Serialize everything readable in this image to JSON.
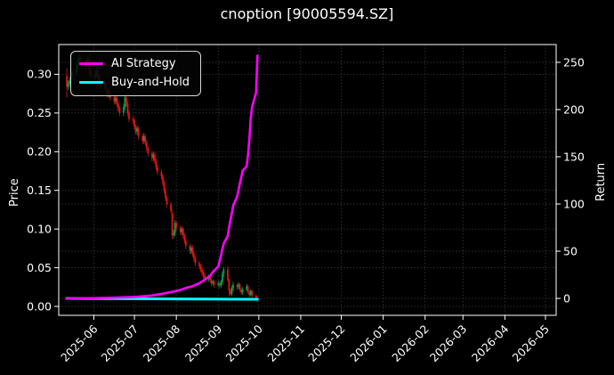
{
  "title": "cnoption [90005594.SZ]",
  "axes": {
    "price_label": "Price",
    "return_label": "Return"
  },
  "legend": {
    "position": "upper left",
    "items": [
      {
        "label": "AI Strategy",
        "color": "#ff00ff"
      },
      {
        "label": "Buy-and-Hold",
        "color": "#00ffff"
      }
    ]
  },
  "colors": {
    "background": "#000000",
    "text": "#ffffff",
    "axis": "#ffffff",
    "grid": "#414b57",
    "candle_up": "#00a652",
    "candle_down": "#e01515",
    "ai_strategy": "#ff00ff",
    "buy_and_hold": "#00ffff"
  },
  "chart_data": {
    "type": "candlestick+line",
    "title": "cnoption [90005594.SZ]",
    "grid": true,
    "legend_position": "upper left",
    "x_range": [
      "2025-05-06",
      "2026-05-08"
    ],
    "x_ticks": [
      "2025-06",
      "2025-07",
      "2025-08",
      "2025-09",
      "2025-10",
      "2025-11",
      "2025-12",
      "2026-01",
      "2026-02",
      "2026-03",
      "2026-04",
      "2026-05"
    ],
    "price_axis": {
      "label": "Price",
      "ticks": [
        0.0,
        0.05,
        0.1,
        0.15,
        0.2,
        0.25,
        0.3
      ],
      "range": [
        -0.012,
        0.339
      ]
    },
    "return_axis": {
      "label": "Return",
      "ticks": [
        0,
        50,
        100,
        150,
        200,
        250
      ],
      "range": [
        -18,
        269
      ]
    },
    "candles": {
      "columns": [
        "date",
        "open",
        "high",
        "low",
        "close"
      ],
      "rows": [
        [
          "2025-05-12",
          0.298,
          0.308,
          0.27,
          0.284
        ],
        [
          "2025-05-13",
          0.284,
          0.292,
          0.28,
          0.288
        ],
        [
          "2025-05-14",
          0.288,
          0.296,
          0.284,
          0.292
        ],
        [
          "2025-05-15",
          0.292,
          0.301,
          0.288,
          0.297
        ],
        [
          "2025-05-16",
          0.297,
          0.306,
          0.293,
          0.302
        ],
        [
          "2025-05-19",
          0.302,
          0.312,
          0.298,
          0.308
        ],
        [
          "2025-05-20",
          0.308,
          0.319,
          0.304,
          0.315
        ],
        [
          "2025-05-21",
          0.315,
          0.326,
          0.311,
          0.322
        ],
        [
          "2025-05-22",
          0.322,
          0.325,
          0.313,
          0.318
        ],
        [
          "2025-05-23",
          0.318,
          0.321,
          0.306,
          0.31
        ],
        [
          "2025-05-26",
          0.31,
          0.319,
          0.306,
          0.315
        ],
        [
          "2025-05-27",
          0.315,
          0.324,
          0.311,
          0.32
        ],
        [
          "2025-05-28",
          0.32,
          0.323,
          0.306,
          0.31
        ],
        [
          "2025-05-29",
          0.31,
          0.328,
          0.298,
          0.302
        ],
        [
          "2025-05-30",
          0.302,
          0.306,
          0.291,
          0.296
        ],
        [
          "2025-06-02",
          0.296,
          0.304,
          0.292,
          0.3
        ],
        [
          "2025-06-03",
          0.3,
          0.309,
          0.296,
          0.305
        ],
        [
          "2025-06-04",
          0.305,
          0.308,
          0.294,
          0.298
        ],
        [
          "2025-06-05",
          0.298,
          0.301,
          0.286,
          0.29
        ],
        [
          "2025-06-06",
          0.29,
          0.294,
          0.281,
          0.285
        ],
        [
          "2025-06-09",
          0.285,
          0.292,
          0.281,
          0.288
        ],
        [
          "2025-06-10",
          0.288,
          0.291,
          0.276,
          0.28
        ],
        [
          "2025-06-11",
          0.28,
          0.283,
          0.27,
          0.274
        ],
        [
          "2025-06-12",
          0.274,
          0.282,
          0.27,
          0.278
        ],
        [
          "2025-06-13",
          0.278,
          0.281,
          0.266,
          0.27
        ],
        [
          "2025-06-16",
          0.27,
          0.273,
          0.261,
          0.265
        ],
        [
          "2025-06-17",
          0.265,
          0.274,
          0.261,
          0.27
        ],
        [
          "2025-06-18",
          0.27,
          0.273,
          0.258,
          0.262
        ],
        [
          "2025-06-19",
          0.262,
          0.265,
          0.252,
          0.256
        ],
        [
          "2025-06-20",
          0.256,
          0.259,
          0.246,
          0.25
        ],
        [
          "2025-06-23",
          0.25,
          0.262,
          0.246,
          0.258
        ],
        [
          "2025-06-24",
          0.258,
          0.274,
          0.254,
          0.27
        ],
        [
          "2025-06-25",
          0.27,
          0.273,
          0.258,
          0.262
        ],
        [
          "2025-06-26",
          0.262,
          0.265,
          0.246,
          0.25
        ],
        [
          "2025-06-27",
          0.25,
          0.253,
          0.238,
          0.242
        ],
        [
          "2025-06-30",
          0.242,
          0.246,
          0.236,
          0.24
        ],
        [
          "2025-07-01",
          0.24,
          0.243,
          0.228,
          0.232
        ],
        [
          "2025-07-02",
          0.232,
          0.235,
          0.222,
          0.226
        ],
        [
          "2025-07-03",
          0.226,
          0.234,
          0.222,
          0.23
        ],
        [
          "2025-07-04",
          0.23,
          0.233,
          0.216,
          0.22
        ],
        [
          "2025-07-07",
          0.22,
          0.223,
          0.21,
          0.214
        ],
        [
          "2025-07-08",
          0.214,
          0.224,
          0.21,
          0.22
        ],
        [
          "2025-07-09",
          0.22,
          0.223,
          0.208,
          0.212
        ],
        [
          "2025-07-10",
          0.212,
          0.215,
          0.201,
          0.205
        ],
        [
          "2025-07-11",
          0.205,
          0.208,
          0.194,
          0.198
        ],
        [
          "2025-07-14",
          0.198,
          0.201,
          0.188,
          0.192
        ],
        [
          "2025-07-15",
          0.192,
          0.2,
          0.188,
          0.196
        ],
        [
          "2025-07-16",
          0.196,
          0.199,
          0.184,
          0.188
        ],
        [
          "2025-07-17",
          0.188,
          0.191,
          0.176,
          0.18
        ],
        [
          "2025-07-18",
          0.18,
          0.183,
          0.17,
          0.174
        ],
        [
          "2025-07-21",
          0.174,
          0.177,
          0.164,
          0.168
        ],
        [
          "2025-07-22",
          0.168,
          0.171,
          0.156,
          0.16
        ],
        [
          "2025-07-23",
          0.16,
          0.163,
          0.146,
          0.15
        ],
        [
          "2025-07-24",
          0.15,
          0.153,
          0.136,
          0.14
        ],
        [
          "2025-07-25",
          0.14,
          0.143,
          0.128,
          0.132
        ],
        [
          "2025-07-28",
          0.132,
          0.135,
          0.12,
          0.124
        ],
        [
          "2025-07-29",
          0.12,
          0.125,
          0.087,
          0.092
        ],
        [
          "2025-07-30",
          0.092,
          0.099,
          0.088,
          0.095
        ],
        [
          "2025-07-31",
          0.095,
          0.112,
          0.091,
          0.108
        ],
        [
          "2025-08-01",
          0.108,
          0.111,
          0.098,
          0.102
        ],
        [
          "2025-08-04",
          0.102,
          0.105,
          0.092,
          0.096
        ],
        [
          "2025-08-05",
          0.096,
          0.103,
          0.092,
          0.1
        ],
        [
          "2025-08-06",
          0.1,
          0.103,
          0.088,
          0.092
        ],
        [
          "2025-08-07",
          0.092,
          0.095,
          0.081,
          0.085
        ],
        [
          "2025-08-08",
          0.085,
          0.088,
          0.074,
          0.078
        ],
        [
          "2025-08-11",
          0.078,
          0.081,
          0.068,
          0.072
        ],
        [
          "2025-08-12",
          0.072,
          0.079,
          0.068,
          0.076
        ],
        [
          "2025-08-13",
          0.076,
          0.079,
          0.064,
          0.068
        ],
        [
          "2025-08-14",
          0.068,
          0.071,
          0.058,
          0.062
        ],
        [
          "2025-08-15",
          0.062,
          0.065,
          0.052,
          0.056
        ],
        [
          "2025-08-18",
          0.056,
          0.059,
          0.048,
          0.052
        ],
        [
          "2025-08-19",
          0.052,
          0.055,
          0.044,
          0.048
        ],
        [
          "2025-08-20",
          0.048,
          0.051,
          0.04,
          0.044
        ],
        [
          "2025-08-21",
          0.044,
          0.047,
          0.036,
          0.04
        ],
        [
          "2025-08-22",
          0.04,
          0.043,
          0.031,
          0.035
        ],
        [
          "2025-08-25",
          0.035,
          0.041,
          0.032,
          0.038
        ],
        [
          "2025-08-26",
          0.038,
          0.04,
          0.03,
          0.034
        ],
        [
          "2025-08-27",
          0.034,
          0.036,
          0.026,
          0.03
        ],
        [
          "2025-08-28",
          0.03,
          0.035,
          0.027,
          0.032
        ],
        [
          "2025-08-29",
          0.032,
          0.034,
          0.024,
          0.028
        ],
        [
          "2025-09-01",
          0.028,
          0.033,
          0.025,
          0.03
        ],
        [
          "2025-09-02",
          0.03,
          0.032,
          0.023,
          0.027
        ],
        [
          "2025-09-03",
          0.027,
          0.034,
          0.024,
          0.031
        ],
        [
          "2025-09-04",
          0.031,
          0.045,
          0.028,
          0.042
        ],
        [
          "2025-09-05",
          0.042,
          0.051,
          0.038,
          0.048
        ],
        [
          "2025-09-08",
          0.048,
          0.052,
          0.032,
          0.035
        ],
        [
          "2025-09-09",
          0.035,
          0.036,
          0.014,
          0.02
        ],
        [
          "2025-09-10",
          0.02,
          0.023,
          0.013,
          0.016
        ],
        [
          "2025-09-11",
          0.016,
          0.027,
          0.014,
          0.024
        ],
        [
          "2025-09-12",
          0.024,
          0.032,
          0.02,
          0.028
        ],
        [
          "2025-09-15",
          0.028,
          0.03,
          0.021,
          0.025
        ],
        [
          "2025-09-16",
          0.025,
          0.031,
          0.022,
          0.028
        ],
        [
          "2025-09-17",
          0.028,
          0.03,
          0.019,
          0.022
        ],
        [
          "2025-09-18",
          0.022,
          0.024,
          0.015,
          0.018
        ],
        [
          "2025-09-19",
          0.018,
          0.025,
          0.015,
          0.022
        ],
        [
          "2025-09-22",
          0.022,
          0.029,
          0.019,
          0.026
        ],
        [
          "2025-09-23",
          0.026,
          0.028,
          0.016,
          0.019
        ],
        [
          "2025-09-24",
          0.019,
          0.021,
          0.012,
          0.015
        ],
        [
          "2025-09-25",
          0.015,
          0.022,
          0.013,
          0.02
        ],
        [
          "2025-09-26",
          0.02,
          0.022,
          0.011,
          0.014
        ],
        [
          "2025-09-29",
          0.014,
          0.016,
          0.008,
          0.011
        ],
        [
          "2025-09-30",
          0.011,
          0.013,
          0.006,
          0.009
        ]
      ]
    },
    "series": [
      {
        "name": "AI Strategy",
        "axis": "return",
        "color": "#ff00ff",
        "points": [
          [
            "2025-05-12",
            0
          ],
          [
            "2025-06-02",
            0.3
          ],
          [
            "2025-06-16",
            0.8
          ],
          [
            "2025-07-01",
            1.5
          ],
          [
            "2025-07-14",
            3
          ],
          [
            "2025-07-22",
            5
          ],
          [
            "2025-07-29",
            7
          ],
          [
            "2025-08-04",
            9
          ],
          [
            "2025-08-08",
            11
          ],
          [
            "2025-08-13",
            13
          ],
          [
            "2025-08-18",
            16
          ],
          [
            "2025-08-21",
            19
          ],
          [
            "2025-08-26",
            24
          ],
          [
            "2025-08-28",
            28
          ],
          [
            "2025-09-01",
            34
          ],
          [
            "2025-09-03",
            45
          ],
          [
            "2025-09-04",
            52
          ],
          [
            "2025-09-05",
            58
          ],
          [
            "2025-09-08",
            66
          ],
          [
            "2025-09-09",
            75
          ],
          [
            "2025-09-10",
            83
          ],
          [
            "2025-09-11",
            90
          ],
          [
            "2025-09-12",
            98
          ],
          [
            "2025-09-15",
            108
          ],
          [
            "2025-09-16",
            115
          ],
          [
            "2025-09-17",
            122
          ],
          [
            "2025-09-18",
            128
          ],
          [
            "2025-09-19",
            135
          ],
          [
            "2025-09-22",
            140
          ],
          [
            "2025-09-23",
            152
          ],
          [
            "2025-09-24",
            168
          ],
          [
            "2025-09-25",
            190
          ],
          [
            "2025-09-26",
            203
          ],
          [
            "2025-09-29",
            218
          ],
          [
            "2025-09-30",
            257
          ]
        ]
      },
      {
        "name": "Buy-and-Hold",
        "axis": "return",
        "color": "#00ffff",
        "points": [
          [
            "2025-05-12",
            0
          ],
          [
            "2025-09-30",
            -0.96
          ]
        ]
      }
    ]
  }
}
